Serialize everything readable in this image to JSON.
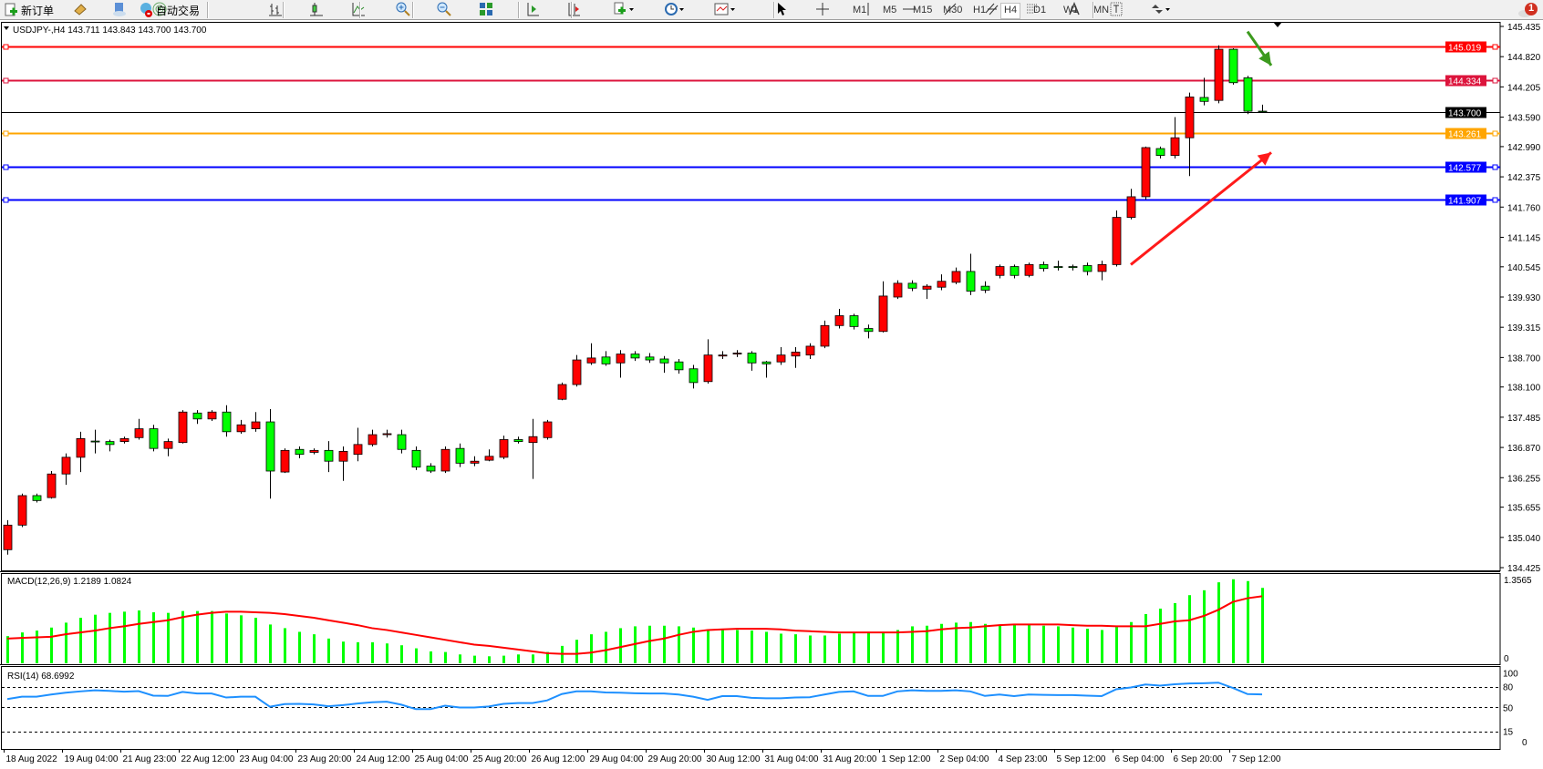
{
  "toolbar": {
    "new_order_label": "新订单",
    "auto_trading_label": "自动交易",
    "timeframes": [
      "M1",
      "M5",
      "M15",
      "M30",
      "H1",
      "H4",
      "D1",
      "W1",
      "MN"
    ],
    "active_timeframe": "H4",
    "notification_count": "1",
    "icons": [
      "new-order-icon",
      "history-center-icon",
      "data-window-icon",
      "signals-icon",
      "auto-trading-icon",
      "bar-chart-icon",
      "candlestick-icon",
      "line-chart-icon",
      "zoom-in-icon",
      "zoom-out-icon",
      "tile-windows-icon",
      "auto-scroll-icon",
      "chart-shift-icon",
      "indicators-icon",
      "periods-icon",
      "templates-icon",
      "cursor-icon",
      "crosshair-icon",
      "vertical-line-icon",
      "horizontal-line-icon",
      "trendline-icon",
      "equidistant-channel-icon",
      "fibonacci-icon",
      "text-icon",
      "text-label-icon",
      "arrows-icon",
      "search-icon",
      "notification-icon"
    ]
  },
  "chart": {
    "title": "USDJPY-,H4  143.711 143.843 143.700 143.700",
    "symbol": "USDJPY-",
    "timeframe": "H4",
    "ohlc": {
      "open": 143.711,
      "high": 143.843,
      "low": 143.7,
      "close": 143.7
    },
    "colors": {
      "bull_body": "#ff0000",
      "bear_body": "#00ff00",
      "wick": "#000000",
      "macd_hist": "#00ff00",
      "macd_signal": "#ff0000",
      "rsi": "#1e90ff"
    }
  },
  "chart_data": {
    "type": "candlestick",
    "price_ticks": [
      "145.435",
      "144.820",
      "144.205",
      "143.590",
      "142.990",
      "142.375",
      "141.760",
      "141.145",
      "140.545",
      "139.930",
      "139.315",
      "138.700",
      "138.100",
      "137.485",
      "136.870",
      "136.255",
      "135.655",
      "135.040",
      "134.425"
    ],
    "ylim": [
      134.425,
      145.435
    ],
    "time_labels": [
      "18 Aug 2022",
      "19 Aug 04:00",
      "21 Aug 23:00",
      "22 Aug 12:00",
      "23 Aug 04:00",
      "23 Aug 20:00",
      "24 Aug 12:00",
      "25 Aug 04:00",
      "25 Aug 20:00",
      "26 Aug 12:00",
      "29 Aug 04:00",
      "29 Aug 20:00",
      "30 Aug 12:00",
      "31 Aug 04:00",
      "31 Aug 20:00",
      "1 Sep 12:00",
      "2 Sep 04:00",
      "4 Sep 23:00",
      "5 Sep 12:00",
      "6 Sep 04:00",
      "6 Sep 20:00",
      "7 Sep 12:00"
    ],
    "candles_ohlc": [
      [
        134.79,
        135.39,
        134.69,
        135.29
      ],
      [
        135.29,
        135.93,
        135.25,
        135.89
      ],
      [
        135.89,
        135.93,
        135.75,
        135.79
      ],
      [
        135.85,
        136.39,
        135.83,
        136.33
      ],
      [
        136.33,
        136.75,
        136.11,
        136.67
      ],
      [
        136.67,
        137.19,
        136.37,
        137.05
      ],
      [
        137.0,
        137.23,
        136.75,
        136.99
      ],
      [
        136.99,
        137.03,
        136.79,
        136.93
      ],
      [
        136.99,
        137.09,
        136.95,
        137.05
      ],
      [
        137.07,
        137.45,
        137.03,
        137.25
      ],
      [
        137.25,
        137.33,
        136.79,
        136.85
      ],
      [
        136.85,
        137.05,
        136.69,
        136.99
      ],
      [
        136.97,
        137.63,
        136.95,
        137.59
      ],
      [
        137.57,
        137.63,
        137.35,
        137.45
      ],
      [
        137.45,
        137.63,
        137.41,
        137.59
      ],
      [
        137.59,
        137.73,
        137.09,
        137.19
      ],
      [
        137.19,
        137.43,
        137.15,
        137.33
      ],
      [
        137.25,
        137.59,
        137.19,
        137.39
      ],
      [
        137.39,
        137.65,
        135.83,
        136.39
      ],
      [
        136.37,
        136.85,
        136.35,
        136.81
      ],
      [
        136.83,
        136.89,
        136.65,
        136.73
      ],
      [
        136.77,
        136.85,
        136.73,
        136.81
      ],
      [
        136.81,
        137.0,
        136.37,
        136.59
      ],
      [
        136.59,
        136.89,
        136.19,
        136.79
      ],
      [
        136.73,
        137.27,
        136.59,
        136.93
      ],
      [
        136.93,
        137.23,
        136.89,
        137.13
      ],
      [
        137.13,
        137.23,
        137.07,
        137.15
      ],
      [
        137.13,
        137.23,
        136.75,
        136.83
      ],
      [
        136.81,
        136.89,
        136.41,
        136.47
      ],
      [
        136.49,
        136.55,
        136.35,
        136.39
      ],
      [
        136.39,
        136.89,
        136.35,
        136.83
      ],
      [
        136.85,
        136.95,
        136.47,
        136.55
      ],
      [
        136.55,
        136.69,
        136.49,
        136.59
      ],
      [
        136.61,
        136.83,
        136.59,
        136.69
      ],
      [
        136.67,
        137.11,
        136.63,
        137.03
      ],
      [
        137.03,
        137.09,
        136.95,
        136.99
      ],
      [
        136.97,
        137.45,
        136.23,
        137.09
      ],
      [
        137.07,
        137.43,
        137.03,
        137.39
      ],
      [
        137.85,
        138.19,
        137.83,
        138.15
      ],
      [
        138.15,
        138.75,
        138.11,
        138.65
      ],
      [
        138.59,
        138.99,
        138.55,
        138.69
      ],
      [
        138.71,
        138.83,
        138.53,
        138.57
      ],
      [
        138.59,
        138.85,
        138.29,
        138.77
      ],
      [
        138.77,
        138.83,
        138.63,
        138.69
      ],
      [
        138.71,
        138.79,
        138.59,
        138.65
      ],
      [
        138.67,
        138.73,
        138.39,
        138.59
      ],
      [
        138.61,
        138.67,
        138.37,
        138.45
      ],
      [
        138.47,
        138.55,
        138.07,
        138.19
      ],
      [
        138.21,
        139.07,
        138.17,
        138.75
      ],
      [
        138.73,
        138.83,
        138.67,
        138.75
      ],
      [
        138.77,
        138.85,
        138.71,
        138.79
      ],
      [
        138.79,
        138.83,
        138.43,
        138.59
      ],
      [
        138.61,
        138.63,
        138.29,
        138.57
      ],
      [
        138.61,
        138.91,
        138.55,
        138.75
      ],
      [
        138.73,
        138.91,
        138.49,
        138.81
      ],
      [
        138.75,
        138.99,
        138.67,
        138.93
      ],
      [
        138.93,
        139.45,
        138.89,
        139.35
      ],
      [
        139.35,
        139.69,
        139.29,
        139.55
      ],
      [
        139.55,
        139.59,
        139.27,
        139.33
      ],
      [
        139.29,
        139.37,
        139.09,
        139.23
      ],
      [
        139.23,
        140.25,
        139.21,
        139.95
      ],
      [
        139.93,
        140.27,
        139.89,
        140.21
      ],
      [
        140.21,
        140.27,
        140.05,
        140.11
      ],
      [
        140.09,
        140.19,
        139.89,
        140.15
      ],
      [
        140.13,
        140.39,
        140.07,
        140.25
      ],
      [
        140.23,
        140.53,
        140.19,
        140.45
      ],
      [
        140.45,
        140.81,
        139.97,
        140.05
      ],
      [
        140.15,
        140.25,
        140.01,
        140.07
      ],
      [
        140.37,
        140.59,
        140.31,
        140.55
      ],
      [
        140.55,
        140.59,
        140.31,
        140.37
      ],
      [
        140.37,
        140.63,
        140.33,
        140.59
      ],
      [
        140.59,
        140.65,
        140.45,
        140.51
      ],
      [
        140.55,
        140.67,
        140.47,
        140.53
      ],
      [
        140.55,
        140.59,
        140.47,
        140.53
      ],
      [
        140.57,
        140.63,
        140.37,
        140.45
      ],
      [
        140.45,
        140.67,
        140.27,
        140.59
      ],
      [
        140.59,
        141.69,
        140.55,
        141.55
      ],
      [
        141.55,
        142.13,
        141.51,
        141.97
      ],
      [
        141.97,
        142.99,
        141.91,
        142.97
      ],
      [
        142.95,
        142.99,
        142.75,
        142.81
      ],
      [
        142.81,
        143.59,
        142.75,
        143.17
      ],
      [
        143.17,
        144.09,
        142.39,
        144.0
      ],
      [
        143.99,
        144.39,
        143.83,
        143.91
      ],
      [
        143.93,
        145.05,
        143.87,
        144.97
      ],
      [
        144.97,
        144.99,
        144.25,
        144.29
      ],
      [
        144.39,
        144.43,
        143.65,
        143.71
      ],
      [
        143.711,
        143.843,
        143.7,
        143.7
      ]
    ],
    "horizontal_lines": [
      {
        "price": "145.019",
        "color": "#ff0000"
      },
      {
        "price": "144.334",
        "color": "#dc143c"
      },
      {
        "price": "143.700",
        "color": "#000000",
        "kind": "bid"
      },
      {
        "price": "143.261",
        "color": "#ffa500"
      },
      {
        "price": "142.577",
        "color": "#0000ff"
      },
      {
        "price": "141.907",
        "color": "#0000ff"
      }
    ],
    "annotations": [
      {
        "type": "arrow",
        "color": "#ff1a1a",
        "from": {
          "bar": 77,
          "price": 140.59
        },
        "to": {
          "bar": 86,
          "price": 142.87
        }
      },
      {
        "type": "arrow",
        "color": "#3c9a1e",
        "from": {
          "bar": 85,
          "price": 145.33
        },
        "to": {
          "bar": 86,
          "price": 144.64
        }
      }
    ],
    "macd": {
      "label": "MACD(12,26,9) 1.2189 1.0824",
      "max_label": "1.3565",
      "zero_label": "0",
      "max": 1.3565,
      "histogram": [
        0.43,
        0.49,
        0.52,
        0.57,
        0.65,
        0.73,
        0.78,
        0.81,
        0.83,
        0.85,
        0.82,
        0.81,
        0.84,
        0.84,
        0.84,
        0.8,
        0.77,
        0.73,
        0.62,
        0.56,
        0.5,
        0.46,
        0.39,
        0.34,
        0.33,
        0.33,
        0.31,
        0.28,
        0.23,
        0.18,
        0.17,
        0.13,
        0.11,
        0.1,
        0.11,
        0.13,
        0.13,
        0.17,
        0.27,
        0.37,
        0.46,
        0.5,
        0.56,
        0.59,
        0.6,
        0.6,
        0.59,
        0.57,
        0.53,
        0.54,
        0.53,
        0.52,
        0.5,
        0.47,
        0.46,
        0.44,
        0.44,
        0.47,
        0.49,
        0.5,
        0.5,
        0.53,
        0.59,
        0.6,
        0.63,
        0.65,
        0.66,
        0.63,
        0.62,
        0.63,
        0.62,
        0.6,
        0.59,
        0.57,
        0.55,
        0.53,
        0.58,
        0.66,
        0.79,
        0.88,
        0.97,
        1.1,
        1.18,
        1.31,
        1.36,
        1.33,
        1.2189
      ],
      "signal": [
        0.39,
        0.4,
        0.41,
        0.42,
        0.46,
        0.49,
        0.52,
        0.56,
        0.59,
        0.63,
        0.66,
        0.69,
        0.74,
        0.78,
        0.81,
        0.83,
        0.83,
        0.82,
        0.81,
        0.79,
        0.76,
        0.73,
        0.69,
        0.65,
        0.61,
        0.56,
        0.53,
        0.49,
        0.45,
        0.41,
        0.37,
        0.33,
        0.29,
        0.27,
        0.24,
        0.21,
        0.18,
        0.15,
        0.14,
        0.14,
        0.16,
        0.2,
        0.25,
        0.3,
        0.35,
        0.39,
        0.45,
        0.5,
        0.53,
        0.54,
        0.55,
        0.55,
        0.55,
        0.54,
        0.52,
        0.51,
        0.5,
        0.49,
        0.49,
        0.49,
        0.49,
        0.49,
        0.5,
        0.51,
        0.54,
        0.56,
        0.57,
        0.59,
        0.61,
        0.62,
        0.62,
        0.62,
        0.62,
        0.61,
        0.6,
        0.6,
        0.59,
        0.59,
        0.59,
        0.63,
        0.67,
        0.69,
        0.76,
        0.86,
        0.99,
        1.05,
        1.0824
      ]
    },
    "rsi": {
      "label": "RSI(14) 68.6992",
      "levels": [
        "100",
        "80",
        "50",
        "15",
        "0"
      ],
      "dashed_levels": [
        80,
        50,
        15
      ],
      "values": [
        61.9,
        65.4,
        65.4,
        68.5,
        71.2,
        73.1,
        74.6,
        73.8,
        72.7,
        73.5,
        66.9,
        66.5,
        72.3,
        70.0,
        70.0,
        64.2,
        65.4,
        65.4,
        50.8,
        54.6,
        55.0,
        54.2,
        51.5,
        53.1,
        55.4,
        57.3,
        58.1,
        53.8,
        47.3,
        47.3,
        52.3,
        49.6,
        49.6,
        51.2,
        55.0,
        56.2,
        56.2,
        60.0,
        69.2,
        73.1,
        73.1,
        71.5,
        71.2,
        70.4,
        70.0,
        70.0,
        68.5,
        65.4,
        60.8,
        66.2,
        66.2,
        63.8,
        63.1,
        63.1,
        64.2,
        64.6,
        68.5,
        72.3,
        73.1,
        66.5,
        66.5,
        73.1,
        74.6,
        73.8,
        73.8,
        74.6,
        73.1,
        66.5,
        68.5,
        66.2,
        68.5,
        68.1,
        67.7,
        67.7,
        66.9,
        66.2,
        76.2,
        78.8,
        83.1,
        81.5,
        83.5,
        84.6,
        85.0,
        85.8,
        78.1,
        69.2,
        68.6992
      ]
    }
  }
}
